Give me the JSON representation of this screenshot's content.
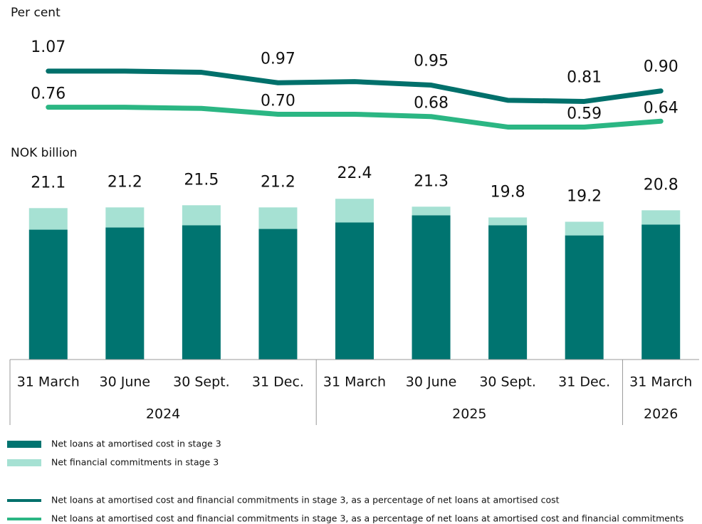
{
  "chart_data": [
    {
      "type": "line",
      "ylabel": "Per cent",
      "ylim": [
        0.55,
        1.1
      ],
      "series": [
        {
          "name": "Net loans at amortised cost and financial commitments in stage 3, as a percentage of net loans at amortised cost",
          "color": "#00706b",
          "values": [
            1.07,
            1.07,
            1.06,
            0.97,
            0.98,
            0.95,
            0.82,
            0.81,
            0.9
          ],
          "value_labels": [
            "1.07",
            null,
            null,
            "0.97",
            null,
            "0.95",
            null,
            "0.81",
            "0.90"
          ]
        },
        {
          "name": "Net loans at amortised cost and financial commitments in stage 3, as a percentage of net loans at amortised cost and financial commitments",
          "color": "#2bb683",
          "values": [
            0.76,
            0.76,
            0.75,
            0.7,
            0.7,
            0.68,
            0.59,
            0.59,
            0.64
          ],
          "value_labels": [
            "0.76",
            null,
            null,
            "0.70",
            null,
            "0.68",
            null,
            "0.59",
            "0.64"
          ]
        }
      ]
    },
    {
      "type": "bar",
      "ylabel": "NOK billion",
      "ylim": [
        0,
        25
      ],
      "groups": [
        {
          "name": "2024",
          "categories": [
            "31 March",
            "30 June",
            "30 Sept.",
            "31 Dec."
          ]
        },
        {
          "name": "2025",
          "categories": [
            "31 March",
            "30 June",
            "30 Sept.",
            "31 Dec."
          ]
        },
        {
          "name": "2026",
          "categories": [
            "31 March"
          ]
        }
      ],
      "series": [
        {
          "name": "Net loans at amortised cost in stage 3",
          "color": "#007470",
          "values": [
            18.1,
            18.4,
            18.7,
            18.2,
            19.1,
            20.1,
            18.7,
            17.3,
            18.8
          ]
        },
        {
          "name": "Net financial commitments in stage 3",
          "color": "#a6e1d3",
          "values": [
            3.0,
            2.8,
            2.8,
            3.0,
            3.3,
            1.2,
            1.1,
            1.9,
            2.0
          ]
        }
      ],
      "totals": [
        21.1,
        21.2,
        21.5,
        21.2,
        22.4,
        21.3,
        19.8,
        19.2,
        20.8
      ]
    }
  ]
}
